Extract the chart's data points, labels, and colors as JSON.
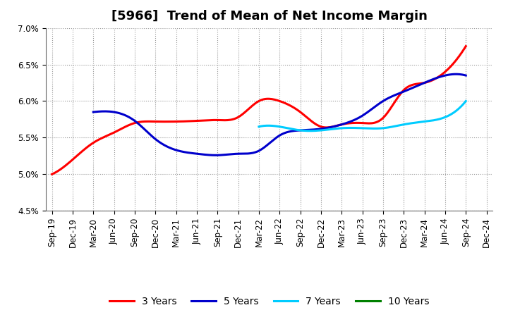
{
  "title": "[5966]  Trend of Mean of Net Income Margin",
  "x_labels": [
    "Sep-19",
    "Dec-19",
    "Mar-20",
    "Jun-20",
    "Sep-20",
    "Dec-20",
    "Mar-21",
    "Jun-21",
    "Sep-21",
    "Dec-21",
    "Mar-22",
    "Jun-22",
    "Sep-22",
    "Dec-22",
    "Mar-23",
    "Jun-23",
    "Sep-23",
    "Dec-23",
    "Mar-24",
    "Jun-24",
    "Sep-24",
    "Dec-24"
  ],
  "ylim": [
    0.045,
    0.07
  ],
  "yticks": [
    0.045,
    0.05,
    0.055,
    0.06,
    0.065,
    0.07
  ],
  "ytick_labels": [
    "4.5%",
    "5.0%",
    "5.5%",
    "6.0%",
    "6.5%",
    "7.0%"
  ],
  "series": {
    "3 Years": {
      "color": "#ff0000",
      "data_y": [
        0.05,
        0.052,
        0.0543,
        0.0557,
        0.057,
        0.0572,
        0.0572,
        0.0573,
        0.0574,
        0.0578,
        0.06,
        0.06,
        0.0585,
        0.0565,
        0.0568,
        0.057,
        0.0577,
        0.0615,
        0.0625,
        0.064,
        0.0675,
        null
      ]
    },
    "5 Years": {
      "color": "#0000cc",
      "data_y": [
        null,
        null,
        0.0585,
        0.0585,
        0.0573,
        0.0548,
        0.0533,
        0.0528,
        0.0526,
        0.0528,
        0.0532,
        0.0553,
        0.056,
        0.0562,
        0.0568,
        0.058,
        0.06,
        0.0613,
        0.0625,
        0.0635,
        0.0635,
        null
      ]
    },
    "7 Years": {
      "color": "#00ccff",
      "data_y": [
        null,
        null,
        null,
        null,
        null,
        null,
        null,
        null,
        null,
        null,
        0.0565,
        0.0565,
        0.056,
        0.056,
        0.0563,
        0.0563,
        0.0563,
        0.0568,
        0.0572,
        0.0578,
        0.06,
        null
      ]
    },
    "10 Years": {
      "color": "#008000",
      "data_y": [
        null,
        null,
        null,
        null,
        null,
        null,
        null,
        null,
        null,
        null,
        null,
        null,
        null,
        null,
        null,
        null,
        null,
        null,
        null,
        null,
        null,
        null
      ]
    }
  },
  "background_color": "#ffffff",
  "plot_background": "#ffffff",
  "grid_color": "#999999",
  "title_fontsize": 13,
  "tick_fontsize": 8.5,
  "legend_fontsize": 10
}
